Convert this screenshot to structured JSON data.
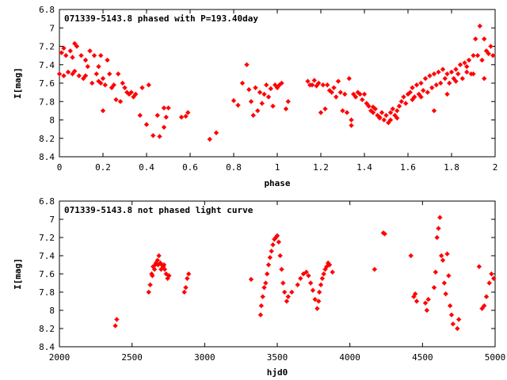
{
  "chart_data": [
    {
      "type": "scatter",
      "title": "071339-5143.8 phased with P=193.40day",
      "xlabel": "phase",
      "ylabel": "I[mag]",
      "xlim": [
        0,
        2
      ],
      "ylim": [
        6.8,
        8.4
      ],
      "y_inverted": true,
      "xticks": [
        "0",
        "0.2",
        "0.4",
        "0.6",
        "0.8",
        "1",
        "1.2",
        "1.4",
        "1.6",
        "1.8",
        "2"
      ],
      "yticks": [
        "6.8",
        "7",
        "7.2",
        "7.4",
        "7.6",
        "7.8",
        "8",
        "8.2",
        "8.4"
      ],
      "marker_color": "#ff0000",
      "points": [
        [
          0.0,
          7.5
        ],
        [
          0.01,
          7.27
        ],
        [
          0.02,
          7.22
        ],
        [
          0.02,
          7.52
        ],
        [
          0.03,
          7.3
        ],
        [
          0.04,
          7.48
        ],
        [
          0.05,
          7.25
        ],
        [
          0.06,
          7.32
        ],
        [
          0.06,
          7.5
        ],
        [
          0.07,
          7.17
        ],
        [
          0.07,
          7.47
        ],
        [
          0.08,
          7.2
        ],
        [
          0.09,
          7.52
        ],
        [
          0.1,
          7.3
        ],
        [
          0.11,
          7.55
        ],
        [
          0.12,
          7.35
        ],
        [
          0.12,
          7.52
        ],
        [
          0.13,
          7.42
        ],
        [
          0.14,
          7.25
        ],
        [
          0.15,
          7.6
        ],
        [
          0.16,
          7.3
        ],
        [
          0.17,
          7.5
        ],
        [
          0.18,
          7.42
        ],
        [
          0.18,
          7.58
        ],
        [
          0.19,
          7.3
        ],
        [
          0.19,
          7.6
        ],
        [
          0.2,
          7.55
        ],
        [
          0.2,
          7.9
        ],
        [
          0.21,
          7.62
        ],
        [
          0.22,
          7.35
        ],
        [
          0.23,
          7.5
        ],
        [
          0.24,
          7.65
        ],
        [
          0.25,
          7.62
        ],
        [
          0.26,
          7.78
        ],
        [
          0.27,
          7.5
        ],
        [
          0.28,
          7.8
        ],
        [
          0.29,
          7.6
        ],
        [
          0.3,
          7.65
        ],
        [
          0.31,
          7.7
        ],
        [
          0.32,
          7.72
        ],
        [
          0.33,
          7.7
        ],
        [
          0.34,
          7.75
        ],
        [
          0.35,
          7.72
        ],
        [
          0.37,
          7.95
        ],
        [
          0.38,
          7.65
        ],
        [
          0.4,
          8.05
        ],
        [
          0.41,
          7.62
        ],
        [
          0.43,
          8.17
        ],
        [
          0.45,
          7.95
        ],
        [
          0.46,
          8.18
        ],
        [
          0.48,
          8.08
        ],
        [
          0.48,
          7.87
        ],
        [
          0.49,
          7.97
        ],
        [
          0.5,
          7.87
        ],
        [
          0.56,
          7.97
        ],
        [
          0.58,
          7.96
        ],
        [
          0.59,
          7.92
        ],
        [
          0.69,
          8.21
        ],
        [
          0.72,
          8.14
        ],
        [
          0.8,
          7.79
        ],
        [
          0.82,
          7.84
        ],
        [
          0.84,
          7.6
        ],
        [
          0.86,
          7.4
        ],
        [
          0.87,
          7.67
        ],
        [
          0.88,
          7.8
        ],
        [
          0.89,
          7.95
        ],
        [
          0.9,
          7.65
        ],
        [
          0.91,
          7.9
        ],
        [
          0.92,
          7.7
        ],
        [
          0.93,
          7.82
        ],
        [
          0.94,
          7.72
        ],
        [
          0.95,
          7.62
        ],
        [
          0.96,
          7.75
        ],
        [
          0.97,
          7.66
        ],
        [
          0.98,
          7.85
        ],
        [
          0.99,
          7.62
        ],
        [
          1.0,
          7.65
        ],
        [
          1.01,
          7.62
        ],
        [
          1.02,
          7.6
        ],
        [
          1.04,
          7.88
        ],
        [
          1.05,
          7.8
        ],
        [
          1.14,
          7.58
        ],
        [
          1.15,
          7.62
        ],
        [
          1.16,
          7.62
        ],
        [
          1.17,
          7.57
        ],
        [
          1.18,
          7.63
        ],
        [
          1.19,
          7.6
        ],
        [
          1.2,
          7.92
        ],
        [
          1.21,
          7.62
        ],
        [
          1.22,
          7.88
        ],
        [
          1.23,
          7.62
        ],
        [
          1.24,
          7.68
        ],
        [
          1.25,
          7.7
        ],
        [
          1.26,
          7.65
        ],
        [
          1.27,
          7.75
        ],
        [
          1.28,
          7.58
        ],
        [
          1.29,
          7.7
        ],
        [
          1.3,
          7.9
        ],
        [
          1.31,
          7.72
        ],
        [
          1.32,
          7.92
        ],
        [
          1.33,
          7.55
        ],
        [
          1.34,
          8.0
        ],
        [
          1.34,
          8.06
        ],
        [
          1.35,
          7.72
        ],
        [
          1.36,
          7.75
        ],
        [
          1.37,
          7.7
        ],
        [
          1.38,
          7.72
        ],
        [
          1.39,
          7.78
        ],
        [
          1.4,
          7.72
        ],
        [
          1.41,
          7.82
        ],
        [
          1.42,
          7.85
        ],
        [
          1.43,
          7.9
        ],
        [
          1.44,
          7.92
        ],
        [
          1.45,
          7.88
        ],
        [
          1.46,
          7.95
        ],
        [
          1.47,
          7.97
        ],
        [
          1.48,
          7.92
        ],
        [
          1.49,
          8.0
        ],
        [
          1.5,
          7.95
        ],
        [
          1.51,
          8.03
        ],
        [
          1.52,
          7.92
        ],
        [
          1.53,
          7.88
        ],
        [
          1.54,
          7.95
        ],
        [
          1.55,
          7.9
        ],
        [
          1.56,
          7.85
        ],
        [
          1.57,
          7.8
        ],
        [
          1.58,
          7.75
        ],
        [
          1.59,
          7.82
        ],
        [
          1.6,
          7.72
        ],
        [
          1.61,
          7.7
        ],
        [
          1.62,
          7.65
        ],
        [
          1.63,
          7.75
        ],
        [
          1.64,
          7.62
        ],
        [
          1.65,
          7.72
        ],
        [
          1.66,
          7.6
        ],
        [
          1.67,
          7.68
        ],
        [
          1.68,
          7.55
        ],
        [
          1.69,
          7.7
        ],
        [
          1.7,
          7.52
        ],
        [
          1.71,
          7.65
        ],
        [
          1.72,
          7.5
        ],
        [
          1.73,
          7.62
        ],
        [
          1.74,
          7.48
        ],
        [
          1.75,
          7.6
        ],
        [
          1.76,
          7.45
        ],
        [
          1.77,
          7.55
        ],
        [
          1.78,
          7.5
        ],
        [
          1.79,
          7.6
        ],
        [
          1.8,
          7.48
        ],
        [
          1.81,
          7.55
        ],
        [
          1.82,
          7.45
        ],
        [
          1.83,
          7.5
        ],
        [
          1.84,
          7.4
        ],
        [
          1.85,
          7.55
        ],
        [
          1.86,
          7.38
        ],
        [
          1.87,
          7.48
        ],
        [
          1.88,
          7.35
        ],
        [
          1.89,
          7.5
        ],
        [
          1.9,
          7.3
        ],
        [
          1.91,
          7.12
        ],
        [
          1.92,
          7.3
        ],
        [
          1.93,
          6.98
        ],
        [
          1.94,
          7.35
        ],
        [
          1.95,
          7.12
        ],
        [
          1.96,
          7.25
        ],
        [
          1.97,
          7.28
        ],
        [
          1.98,
          7.2
        ],
        [
          1.99,
          7.3
        ],
        [
          1.72,
          7.9
        ],
        [
          1.66,
          7.75
        ],
        [
          1.78,
          7.72
        ],
        [
          1.82,
          7.58
        ],
        [
          1.87,
          7.42
        ],
        [
          1.9,
          7.5
        ],
        [
          1.95,
          7.55
        ],
        [
          1.62,
          7.78
        ],
        [
          1.55,
          7.98
        ],
        [
          1.47,
          7.98
        ],
        [
          1.44,
          7.86
        ],
        [
          1.52,
          8.0
        ]
      ]
    },
    {
      "type": "scatter",
      "title": "071339-5143.8 not phased light curve",
      "xlabel": "hjd0",
      "ylabel": "I[mag]",
      "xlim": [
        2000,
        5000
      ],
      "ylim": [
        6.8,
        8.4
      ],
      "y_inverted": true,
      "xticks": [
        "2000",
        "2500",
        "3000",
        "3500",
        "4000",
        "4500",
        "5000"
      ],
      "yticks": [
        "6.8",
        "7",
        "7.2",
        "7.4",
        "7.6",
        "7.8",
        "8",
        "8.2",
        "8.4"
      ],
      "marker_color": "#ff0000",
      "points": [
        [
          2385,
          8.17
        ],
        [
          2395,
          8.1
        ],
        [
          2615,
          7.8
        ],
        [
          2625,
          7.72
        ],
        [
          2635,
          7.6
        ],
        [
          2645,
          7.52
        ],
        [
          2655,
          7.55
        ],
        [
          2665,
          7.48
        ],
        [
          2675,
          7.45
        ],
        [
          2685,
          7.4
        ],
        [
          2695,
          7.48
        ],
        [
          2705,
          7.5
        ],
        [
          2715,
          7.52
        ],
        [
          2725,
          7.55
        ],
        [
          2735,
          7.6
        ],
        [
          2745,
          7.65
        ],
        [
          2755,
          7.62
        ],
        [
          2640,
          7.62
        ],
        [
          2660,
          7.5
        ],
        [
          2680,
          7.5
        ],
        [
          2700,
          7.55
        ],
        [
          2720,
          7.5
        ],
        [
          2860,
          7.8
        ],
        [
          2870,
          7.75
        ],
        [
          2880,
          7.65
        ],
        [
          2890,
          7.6
        ],
        [
          3320,
          7.66
        ],
        [
          3385,
          8.05
        ],
        [
          3390,
          7.95
        ],
        [
          3400,
          7.85
        ],
        [
          3410,
          7.75
        ],
        [
          3420,
          7.7
        ],
        [
          3430,
          7.6
        ],
        [
          3440,
          7.5
        ],
        [
          3450,
          7.42
        ],
        [
          3460,
          7.35
        ],
        [
          3470,
          7.28
        ],
        [
          3480,
          7.22
        ],
        [
          3490,
          7.2
        ],
        [
          3500,
          7.18
        ],
        [
          3510,
          7.25
        ],
        [
          3520,
          7.4
        ],
        [
          3530,
          7.55
        ],
        [
          3540,
          7.7
        ],
        [
          3550,
          7.8
        ],
        [
          3565,
          7.9
        ],
        [
          3575,
          7.85
        ],
        [
          3600,
          7.8
        ],
        [
          3640,
          7.72
        ],
        [
          3660,
          7.65
        ],
        [
          3680,
          7.6
        ],
        [
          3700,
          7.58
        ],
        [
          3715,
          7.62
        ],
        [
          3730,
          7.7
        ],
        [
          3745,
          7.78
        ],
        [
          3760,
          7.88
        ],
        [
          3775,
          7.98
        ],
        [
          3785,
          7.9
        ],
        [
          3790,
          7.8
        ],
        [
          3800,
          7.72
        ],
        [
          3810,
          7.65
        ],
        [
          3820,
          7.6
        ],
        [
          3830,
          7.55
        ],
        [
          3840,
          7.52
        ],
        [
          3850,
          7.48
        ],
        [
          3860,
          7.5
        ],
        [
          3880,
          7.58
        ],
        [
          4170,
          7.55
        ],
        [
          4230,
          7.15
        ],
        [
          4240,
          7.16
        ],
        [
          4420,
          7.4
        ],
        [
          4440,
          7.85
        ],
        [
          4450,
          7.82
        ],
        [
          4460,
          7.9
        ],
        [
          4520,
          7.92
        ],
        [
          4530,
          8.0
        ],
        [
          4540,
          7.88
        ],
        [
          4580,
          7.75
        ],
        [
          4590,
          7.58
        ],
        [
          4600,
          7.2
        ],
        [
          4610,
          7.1
        ],
        [
          4620,
          6.98
        ],
        [
          4630,
          7.4
        ],
        [
          4640,
          7.45
        ],
        [
          4650,
          7.7
        ],
        [
          4660,
          7.82
        ],
        [
          4670,
          7.38
        ],
        [
          4680,
          7.62
        ],
        [
          4690,
          7.95
        ],
        [
          4700,
          8.05
        ],
        [
          4710,
          8.15
        ],
        [
          4740,
          8.2
        ],
        [
          4750,
          8.1
        ],
        [
          4890,
          7.52
        ],
        [
          4910,
          7.98
        ],
        [
          4925,
          7.95
        ],
        [
          4940,
          7.85
        ],
        [
          4960,
          7.7
        ],
        [
          4975,
          7.6
        ],
        [
          4990,
          7.65
        ]
      ]
    }
  ]
}
